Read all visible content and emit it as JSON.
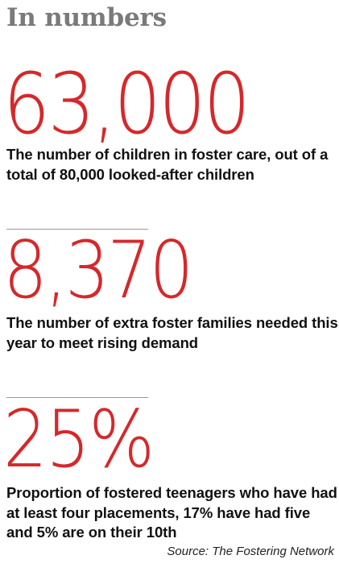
{
  "heading": "In numbers",
  "stats": [
    {
      "value": "63,000",
      "description": "The number of children in foster care, out of a total of 80,000 looked-after children"
    },
    {
      "value": "8,370",
      "description": "The number of extra foster families needed this year to meet rising demand"
    },
    {
      "value": "25%",
      "description": "Proportion of fostered teenagers who have had at least four placements, 17% have had five and 5% are on their 10th"
    }
  ],
  "source": "Source: The Fostering Network",
  "colors": {
    "heading": "#7a7a7a",
    "stat_value": "#d5282b",
    "description": "#111111",
    "rule": "#9a9a9a"
  }
}
